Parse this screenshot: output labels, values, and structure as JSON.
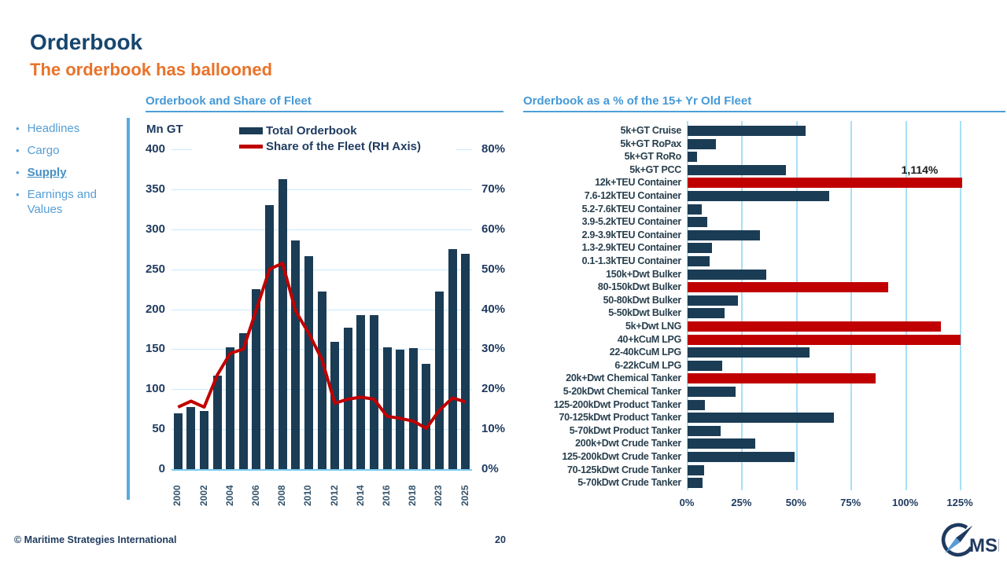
{
  "header": {
    "title": "Orderbook",
    "subtitle": "The orderbook has ballooned"
  },
  "sidebar": {
    "items": [
      {
        "label": "Headlines",
        "active": false
      },
      {
        "label": "Cargo",
        "active": false
      },
      {
        "label": "Supply",
        "active": true
      },
      {
        "label": "Earnings and Values",
        "active": false
      }
    ]
  },
  "footer": {
    "copyright": "© Maritime Strategies International",
    "page_number": "20",
    "logo_text": "MSI"
  },
  "colors": {
    "title_navy": "#17466F",
    "subtitle_orange": "#E8732A",
    "chart_title_blue": "#4599D6",
    "bar_navy": "#1B3C55",
    "highlight_red": "#C00000",
    "gridline_blue": "#C9E9FA",
    "sidebar_blue": "#549ED5"
  },
  "chart_data": [
    {
      "type": "bar",
      "subtype": "combo-bar-line",
      "title": "Orderbook and Share of Fleet",
      "unit_label": "Mn GT",
      "legend": [
        "Total Orderbook",
        "Share of the Fleet (RH Axis)"
      ],
      "legend_position": "top",
      "grid": true,
      "n_bars": 23,
      "x_tick_labels": [
        "2000",
        "2002",
        "2004",
        "2006",
        "2008",
        "2010",
        "2012",
        "2014",
        "2016",
        "2018",
        "2023",
        "2025"
      ],
      "x_tick_under_every_other_bar": true,
      "series": [
        {
          "name": "Total Orderbook",
          "type": "bar",
          "axis": "left",
          "values": [
            70,
            78,
            73,
            117,
            152,
            170,
            225,
            330,
            363,
            286,
            266,
            222,
            159,
            177,
            193,
            193,
            152,
            149,
            151,
            132,
            222,
            275,
            269
          ]
        },
        {
          "name": "Share of the Fleet (RH Axis)",
          "type": "line",
          "axis": "right",
          "values": [
            15.5,
            17,
            15.5,
            23.5,
            29,
            30,
            40,
            50,
            51.5,
            39.5,
            34,
            27.5,
            16.5,
            17.5,
            18,
            17.5,
            13.2,
            12.7,
            12,
            10.2,
            14.7,
            17.8,
            16.8
          ]
        }
      ],
      "left_axis": {
        "label": "Mn GT",
        "min": 0,
        "max": 400,
        "step": 50
      },
      "right_axis": {
        "min": 0,
        "max": 80,
        "step": 10,
        "suffix": "%"
      }
    },
    {
      "type": "bar",
      "subtype": "horizontal",
      "title": "Orderbook as a % of the 15+ Yr Old Fleet",
      "grid": true,
      "x_axis": {
        "min": 0,
        "max": 125,
        "step": 25,
        "suffix": "%"
      },
      "x_tick_labels": [
        "0%",
        "25%",
        "50%",
        "75%",
        "100%",
        "125%"
      ],
      "annotation": {
        "text": "1,114%",
        "applies_to": "12k+TEU Container"
      },
      "rows": [
        {
          "label": "5k+GT Cruise",
          "value": 54,
          "red": false
        },
        {
          "label": "5k+GT RoPax",
          "value": 13,
          "red": false
        },
        {
          "label": "5k+GT RoRo",
          "value": 4.5,
          "red": false
        },
        {
          "label": "5k+GT PCC",
          "value": 45,
          "red": false
        },
        {
          "label": "12k+TEU Container",
          "value": 1114,
          "red": true,
          "truncated": true
        },
        {
          "label": "7.6-12kTEU Container",
          "value": 65,
          "red": false
        },
        {
          "label": "5.2-7.6kTEU Container",
          "value": 6.5,
          "red": false
        },
        {
          "label": "3.9-5.2kTEU Container",
          "value": 9,
          "red": false
        },
        {
          "label": "2.9-3.9kTEU Container",
          "value": 33,
          "red": false
        },
        {
          "label": "1.3-2.9kTEU Container",
          "value": 11,
          "red": false
        },
        {
          "label": "0.1-1.3kTEU Container",
          "value": 10,
          "red": false
        },
        {
          "label": "150k+Dwt Bulker",
          "value": 36,
          "red": false
        },
        {
          "label": "80-150kDwt Bulker",
          "value": 92,
          "red": true
        },
        {
          "label": "50-80kDwt Bulker",
          "value": 23,
          "red": false
        },
        {
          "label": "5-50kDwt Bulker",
          "value": 17,
          "red": false
        },
        {
          "label": "5k+Dwt LNG",
          "value": 116,
          "red": true
        },
        {
          "label": "40+kCuM LPG",
          "value": 125,
          "red": true
        },
        {
          "label": "22-40kCuM LPG",
          "value": 56,
          "red": false
        },
        {
          "label": "6-22kCuM LPG",
          "value": 16,
          "red": false
        },
        {
          "label": "20k+Dwt Chemical Tanker",
          "value": 86,
          "red": true
        },
        {
          "label": "5-20kDwt Chemical Tanker",
          "value": 22,
          "red": false
        },
        {
          "label": "125-200kDwt Product Tanker",
          "value": 8,
          "red": false
        },
        {
          "label": "70-125kDwt Product Tanker",
          "value": 67,
          "red": false
        },
        {
          "label": "5-70kDwt Product Tanker",
          "value": 15,
          "red": false
        },
        {
          "label": "200k+Dwt Crude Tanker",
          "value": 31,
          "red": false
        },
        {
          "label": "125-200kDwt Crude Tanker",
          "value": 49,
          "red": false
        },
        {
          "label": "70-125kDwt Crude Tanker",
          "value": 7.5,
          "red": false
        },
        {
          "label": "5-70kDwt Crude Tanker",
          "value": 7,
          "red": false
        }
      ]
    }
  ]
}
